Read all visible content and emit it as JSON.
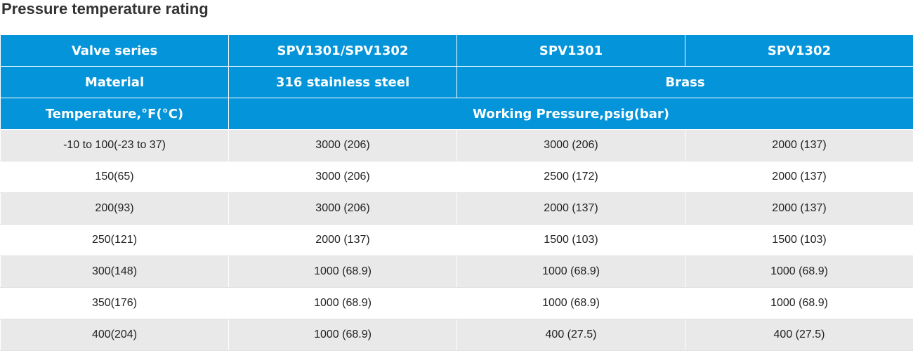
{
  "title": "Pressure temperature rating",
  "header": {
    "row1": [
      "Valve series",
      "SPV1301/SPV1302",
      "SPV1301",
      "SPV1302"
    ],
    "row2": [
      "Material",
      "316 stainless steel",
      "Brass"
    ],
    "row3": [
      "Temperature,°F(°C)",
      "Working Pressure,psig(bar)"
    ]
  },
  "rows": [
    [
      "-10 to 100(-23 to 37)",
      "3000 (206)",
      "3000 (206)",
      "2000 (137)"
    ],
    [
      "150(65)",
      "3000 (206)",
      "2500 (172)",
      "2000 (137)"
    ],
    [
      "200(93)",
      "3000 (206)",
      "2000 (137)",
      "2000 (137)"
    ],
    [
      "250(121)",
      "2000 (137)",
      "1500 (103)",
      "1500 (103)"
    ],
    [
      "300(148)",
      "1000 (68.9)",
      "1000 (68.9)",
      "1000 (68.9)"
    ],
    [
      "350(176)",
      "1000 (68.9)",
      "1000 (68.9)",
      "1000 (68.9)"
    ],
    [
      "400(204)",
      "1000 (68.9)",
      "400 (27.5)",
      "400 (27.5)"
    ]
  ],
  "colors": {
    "header_bg": "#0494da",
    "row_shaded": "#e9e9e9",
    "row_plain": "#ffffff"
  }
}
